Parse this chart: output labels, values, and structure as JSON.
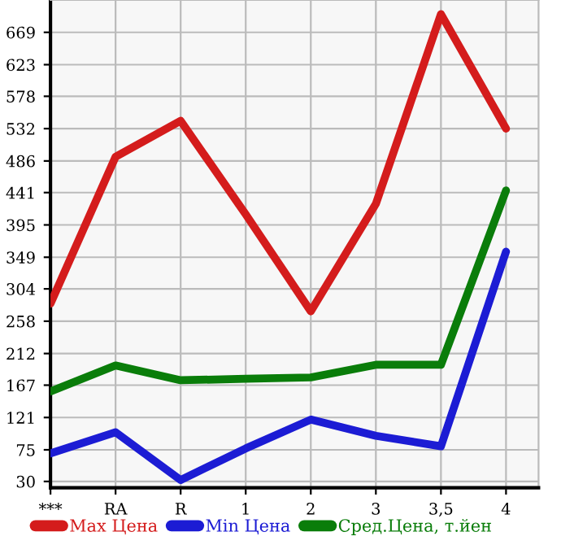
{
  "chart_data": {
    "type": "line",
    "categories": [
      "***",
      "RA",
      "R",
      "1",
      "2",
      "3",
      "3,5",
      "4"
    ],
    "series": [
      {
        "name": "Max Цена",
        "color": "#d41c1c",
        "values": [
          283,
          492,
          543,
          410,
          272,
          425,
          695,
          532
        ]
      },
      {
        "name": "Min Цена",
        "color": "#1c1cd4",
        "values": [
          70,
          100,
          32,
          77,
          118,
          95,
          80,
          357
        ]
      },
      {
        "name": "Сред.Цена, т.йен",
        "color": "#0a7d0a",
        "values": [
          158,
          195,
          174,
          176,
          178,
          196,
          196,
          444
        ]
      }
    ],
    "ylim": [
      21,
      715
    ],
    "yticks": [
      30,
      75,
      121,
      167,
      212,
      258,
      304,
      349,
      395,
      441,
      486,
      532,
      578,
      623,
      669
    ],
    "grid": true,
    "legend": "bottom",
    "marker": "none",
    "line_style": "solid"
  }
}
